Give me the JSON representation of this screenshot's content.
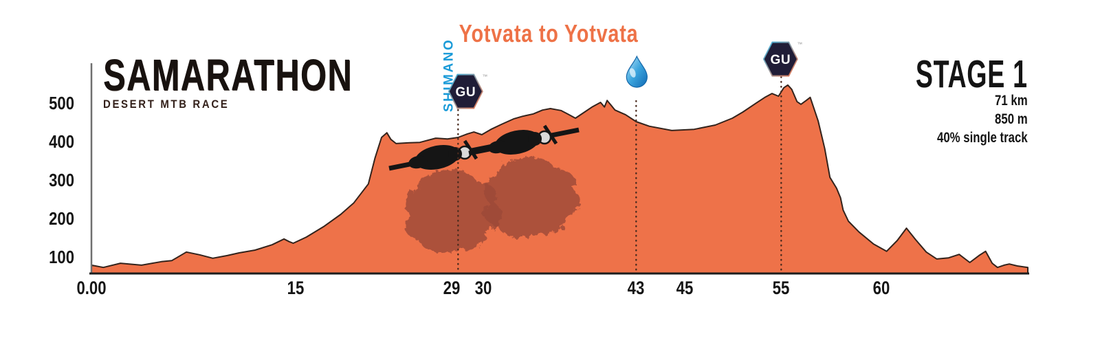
{
  "header": {
    "race_logo": {
      "title": "SAMARATHON",
      "subtitle": "DESERT MTB RACE"
    },
    "route_title": "Yotvata to Yotvata",
    "stage": {
      "title": "STAGE 1",
      "distance": "71 km",
      "elevation_gain": "850 m",
      "surface": "40% single track"
    }
  },
  "sponsors": {
    "shimano": "SHIMANO",
    "gu": "GU",
    "trademark": "™"
  },
  "colors": {
    "terrain_fill": "#ee7249",
    "terrain_outline": "#33231c",
    "accent_orange": "#ee7247",
    "shimano_blue": "#1b9bd8",
    "gu_hex_navy": "#201d37",
    "water_blue": "#1778c2",
    "rider_black": "#151515",
    "shadow_maroon": "#9c4a39"
  },
  "chart_data": {
    "type": "area",
    "title": "Yotvata to Yotvata",
    "xlabel": "",
    "ylabel": "",
    "x_range_km": [
      0,
      71
    ],
    "ylim": [
      50,
      560
    ],
    "grid": false,
    "y_ticks": [
      {
        "label": "500",
        "elev": 500
      },
      {
        "label": "400",
        "elev": 400
      },
      {
        "label": "300",
        "elev": 300
      },
      {
        "label": "200",
        "elev": 200
      },
      {
        "label": "100",
        "elev": 100
      }
    ],
    "x_ticks": [
      {
        "label": "0.00",
        "pos_km": 0
      },
      {
        "label": "15",
        "pos_km": 15.5
      },
      {
        "label": "29",
        "pos_km": 27.3
      },
      {
        "label": "30",
        "pos_km": 29.7
      },
      {
        "label": "43",
        "pos_km": 41.3
      },
      {
        "label": "45",
        "pos_km": 45.0
      },
      {
        "label": "55",
        "pos_km": 52.3
      },
      {
        "label": "60",
        "pos_km": 59.9
      }
    ],
    "markers": [
      {
        "name": "shimano-gu-feed",
        "pos_km": 27.8,
        "icons": [
          "shimano-logo",
          "gu-logo"
        ]
      },
      {
        "name": "water-point",
        "pos_km": 41.3,
        "icons": [
          "water-drop"
        ]
      },
      {
        "name": "gu-feed",
        "pos_km": 52.3,
        "icons": [
          "gu-logo"
        ]
      }
    ],
    "profile_km_elev": [
      [
        0,
        77
      ],
      [
        0.9,
        71
      ],
      [
        2.2,
        82
      ],
      [
        3.8,
        77
      ],
      [
        5.3,
        86
      ],
      [
        6.1,
        89
      ],
      [
        7.2,
        111
      ],
      [
        8.2,
        104
      ],
      [
        9.2,
        95
      ],
      [
        10.3,
        102
      ],
      [
        11.2,
        109
      ],
      [
        12.4,
        116
      ],
      [
        13.7,
        130
      ],
      [
        14.6,
        145
      ],
      [
        15.0,
        138
      ],
      [
        15.3,
        134
      ],
      [
        16.3,
        150
      ],
      [
        17.6,
        177
      ],
      [
        18.9,
        209
      ],
      [
        19.9,
        239
      ],
      [
        21.0,
        288
      ],
      [
        21.5,
        355
      ],
      [
        22.0,
        409
      ],
      [
        22.4,
        421
      ],
      [
        22.7,
        404
      ],
      [
        23.1,
        393
      ],
      [
        24.1,
        395
      ],
      [
        24.9,
        396
      ],
      [
        26.1,
        407
      ],
      [
        27.0,
        405
      ],
      [
        27.8,
        409
      ],
      [
        28.5,
        418
      ],
      [
        29.0,
        423
      ],
      [
        29.6,
        416
      ],
      [
        30.3,
        430
      ],
      [
        31.1,
        443
      ],
      [
        32.0,
        457
      ],
      [
        32.7,
        464
      ],
      [
        33.5,
        470
      ],
      [
        34.2,
        480
      ],
      [
        34.8,
        484
      ],
      [
        35.6,
        479
      ],
      [
        36.1,
        470
      ],
      [
        36.7,
        459
      ],
      [
        37.4,
        475
      ],
      [
        38.0,
        489
      ],
      [
        38.6,
        500
      ],
      [
        38.9,
        488
      ],
      [
        39.1,
        505
      ],
      [
        39.7,
        480
      ],
      [
        40.5,
        468
      ],
      [
        41.3,
        450
      ],
      [
        42.3,
        438
      ],
      [
        44.0,
        427
      ],
      [
        45.7,
        430
      ],
      [
        47.3,
        441
      ],
      [
        48.6,
        459
      ],
      [
        49.4,
        475
      ],
      [
        50.4,
        498
      ],
      [
        51.1,
        514
      ],
      [
        51.6,
        523
      ],
      [
        52.1,
        516
      ],
      [
        52.5,
        538
      ],
      [
        52.8,
        545
      ],
      [
        53.1,
        534
      ],
      [
        53.5,
        502
      ],
      [
        53.8,
        495
      ],
      [
        54.2,
        505
      ],
      [
        54.5,
        513
      ],
      [
        55.1,
        452
      ],
      [
        55.6,
        380
      ],
      [
        56.0,
        305
      ],
      [
        56.5,
        277
      ],
      [
        56.8,
        252
      ],
      [
        57.0,
        220
      ],
      [
        57.4,
        191
      ],
      [
        58.2,
        163
      ],
      [
        59.3,
        132
      ],
      [
        60.3,
        113
      ],
      [
        61.1,
        141
      ],
      [
        61.8,
        173
      ],
      [
        62.5,
        143
      ],
      [
        63.3,
        111
      ],
      [
        64.1,
        93
      ],
      [
        65.0,
        96
      ],
      [
        65.8,
        105
      ],
      [
        66.6,
        84
      ],
      [
        67.3,
        102
      ],
      [
        67.8,
        113
      ],
      [
        68.3,
        82
      ],
      [
        68.7,
        71
      ],
      [
        69.2,
        77
      ],
      [
        69.6,
        80
      ],
      [
        70.2,
        75
      ],
      [
        71.0,
        71
      ]
    ]
  }
}
